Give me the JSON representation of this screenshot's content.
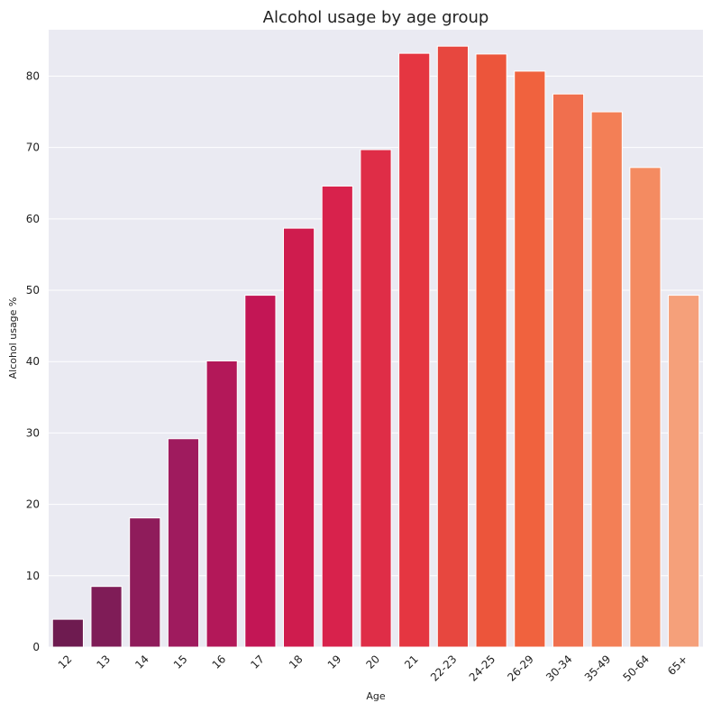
{
  "chart_data": {
    "type": "bar",
    "title": "Alcohol usage by age group",
    "xlabel": "Age",
    "ylabel": "Alcohol usage %",
    "categories": [
      "12",
      "13",
      "14",
      "15",
      "16",
      "17",
      "18",
      "19",
      "20",
      "21",
      "22-23",
      "24-25",
      "26-29",
      "30-34",
      "35-49",
      "50-64",
      "65+"
    ],
    "values": [
      3.9,
      8.5,
      18.1,
      29.2,
      40.1,
      49.3,
      58.7,
      64.6,
      69.7,
      83.2,
      84.2,
      83.1,
      80.7,
      77.5,
      75.0,
      67.2,
      49.3
    ],
    "ylim": [
      0,
      86.5
    ],
    "yticks": [
      0,
      10,
      20,
      30,
      40,
      50,
      60,
      70,
      80
    ],
    "grid": true,
    "colors": [
      "#6e1b50",
      "#7f1c57",
      "#8f1c5b",
      "#9f1b5e",
      "#b31859",
      "#c31655",
      "#cf1c4e",
      "#d8224c",
      "#df2d47",
      "#e53641",
      "#e7473f",
      "#ec553b",
      "#f0623e",
      "#f06f4e",
      "#f37f56",
      "#f48b61",
      "#f5a07a"
    ]
  }
}
